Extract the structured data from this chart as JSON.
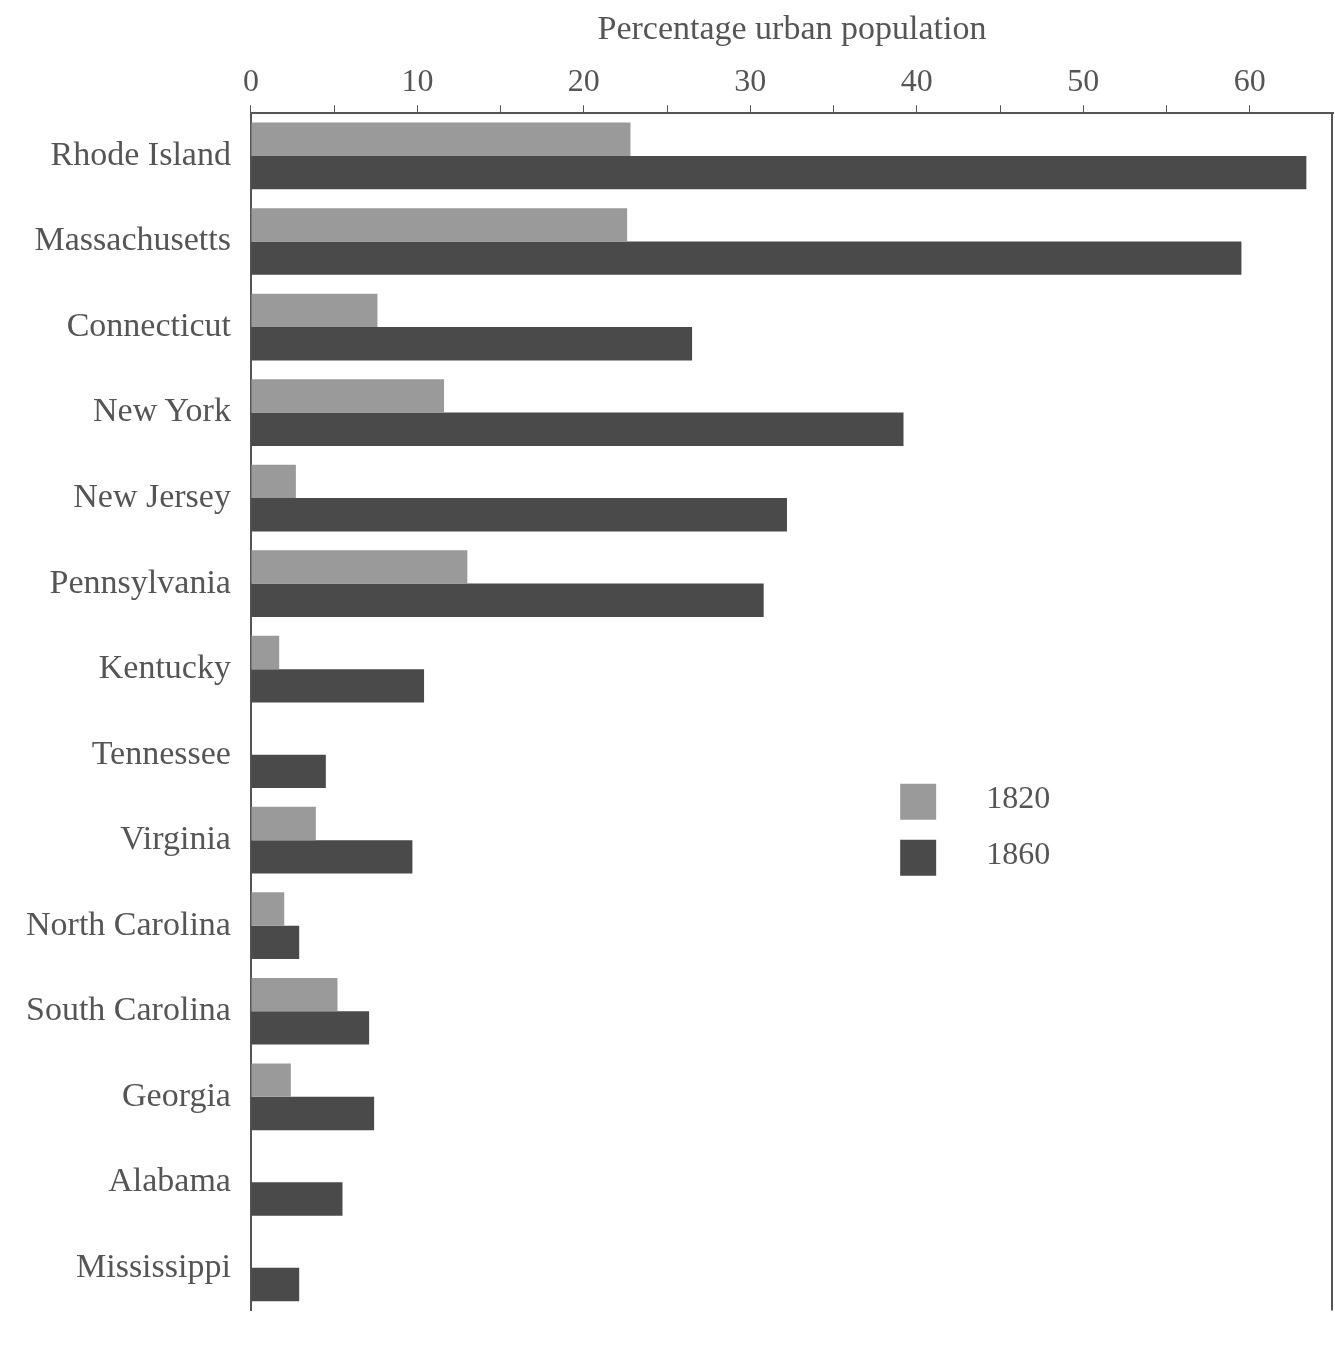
{
  "chart_data": {
    "type": "bar",
    "orientation": "horizontal",
    "xlabel": "Percentage urban population",
    "categories": [
      "Rhode Island",
      "Massachusetts",
      "Connecticut",
      "New York",
      "New Jersey",
      "Pennsylvania",
      "Kentucky",
      "Tennessee",
      "Virginia",
      "North Carolina",
      "South Carolina",
      "Georgia",
      "Alabama",
      "Mississippi"
    ],
    "series": [
      {
        "name": "1820",
        "color": "#9a9a9a",
        "values": [
          22.8,
          22.6,
          7.6,
          11.6,
          2.7,
          13.0,
          1.7,
          0,
          3.9,
          2.0,
          5.2,
          2.4,
          0,
          0
        ]
      },
      {
        "name": "1860",
        "color": "#4a4a4a",
        "values": [
          63.4,
          59.5,
          26.5,
          39.2,
          32.2,
          30.8,
          10.4,
          4.5,
          9.7,
          2.9,
          7.1,
          7.4,
          5.5,
          2.9
        ]
      }
    ],
    "xlim": [
      0,
      65
    ],
    "xticks": [
      0,
      {
        "value": 5,
        "label": null
      },
      10,
      {
        "value": 15,
        "label": null
      },
      20,
      {
        "value": 25,
        "label": null
      },
      30,
      {
        "value": 35,
        "label": null
      },
      40,
      {
        "value": 45,
        "label": null
      },
      50,
      {
        "value": 55,
        "label": null
      },
      60
    ],
    "legend": "right",
    "grid": false
  }
}
